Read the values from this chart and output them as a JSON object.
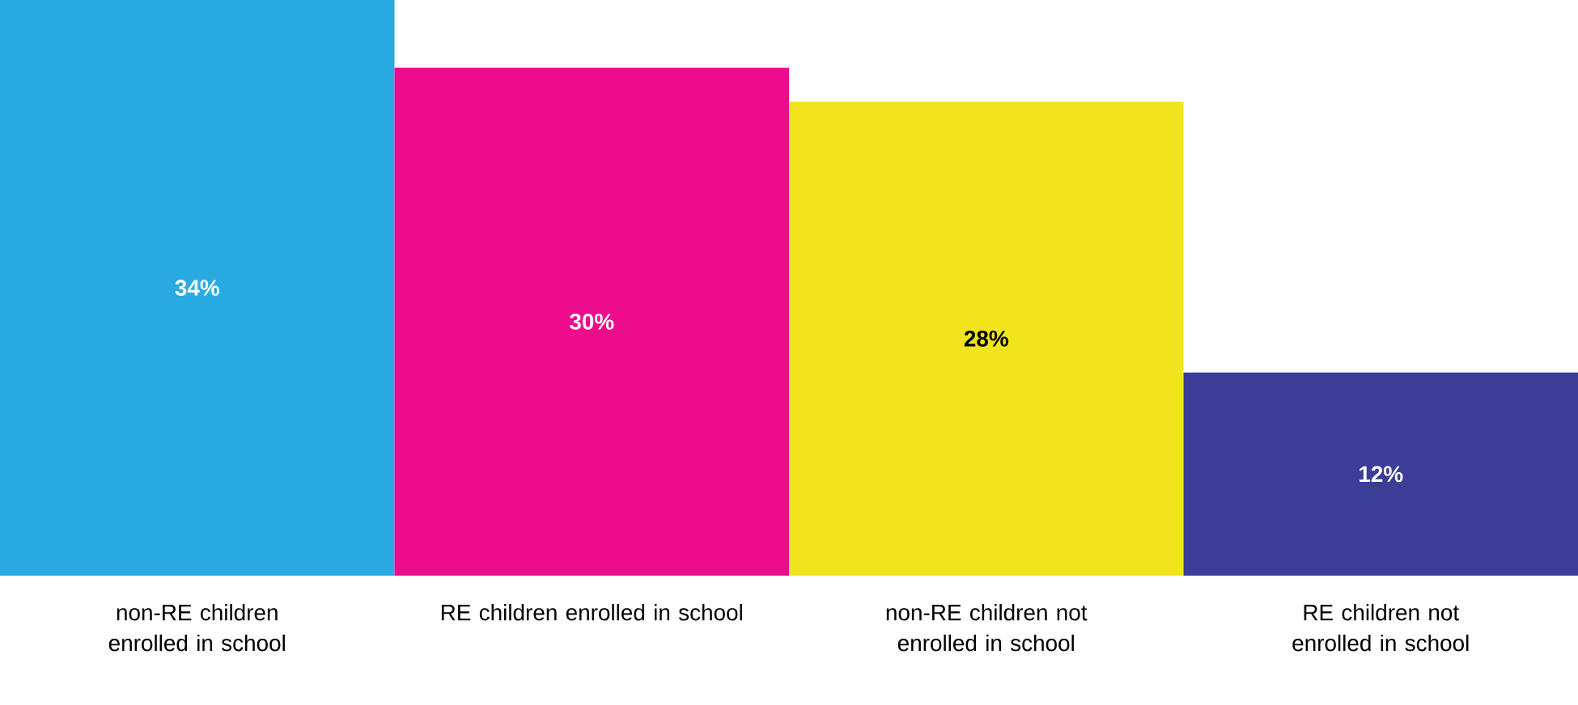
{
  "chart_data": {
    "type": "bar",
    "categories": [
      "non-RE children enrolled in school",
      "RE children enrolled in school",
      "non-RE children not enrolled in school",
      "RE children not enrolled in school"
    ],
    "values": [
      34,
      30,
      28,
      12
    ],
    "colors": [
      "#29abe2",
      "#ec0c8c",
      "#f0e51c",
      "#3b3d96"
    ],
    "value_labels": [
      "34%",
      "30%",
      "28%",
      "12%"
    ]
  }
}
